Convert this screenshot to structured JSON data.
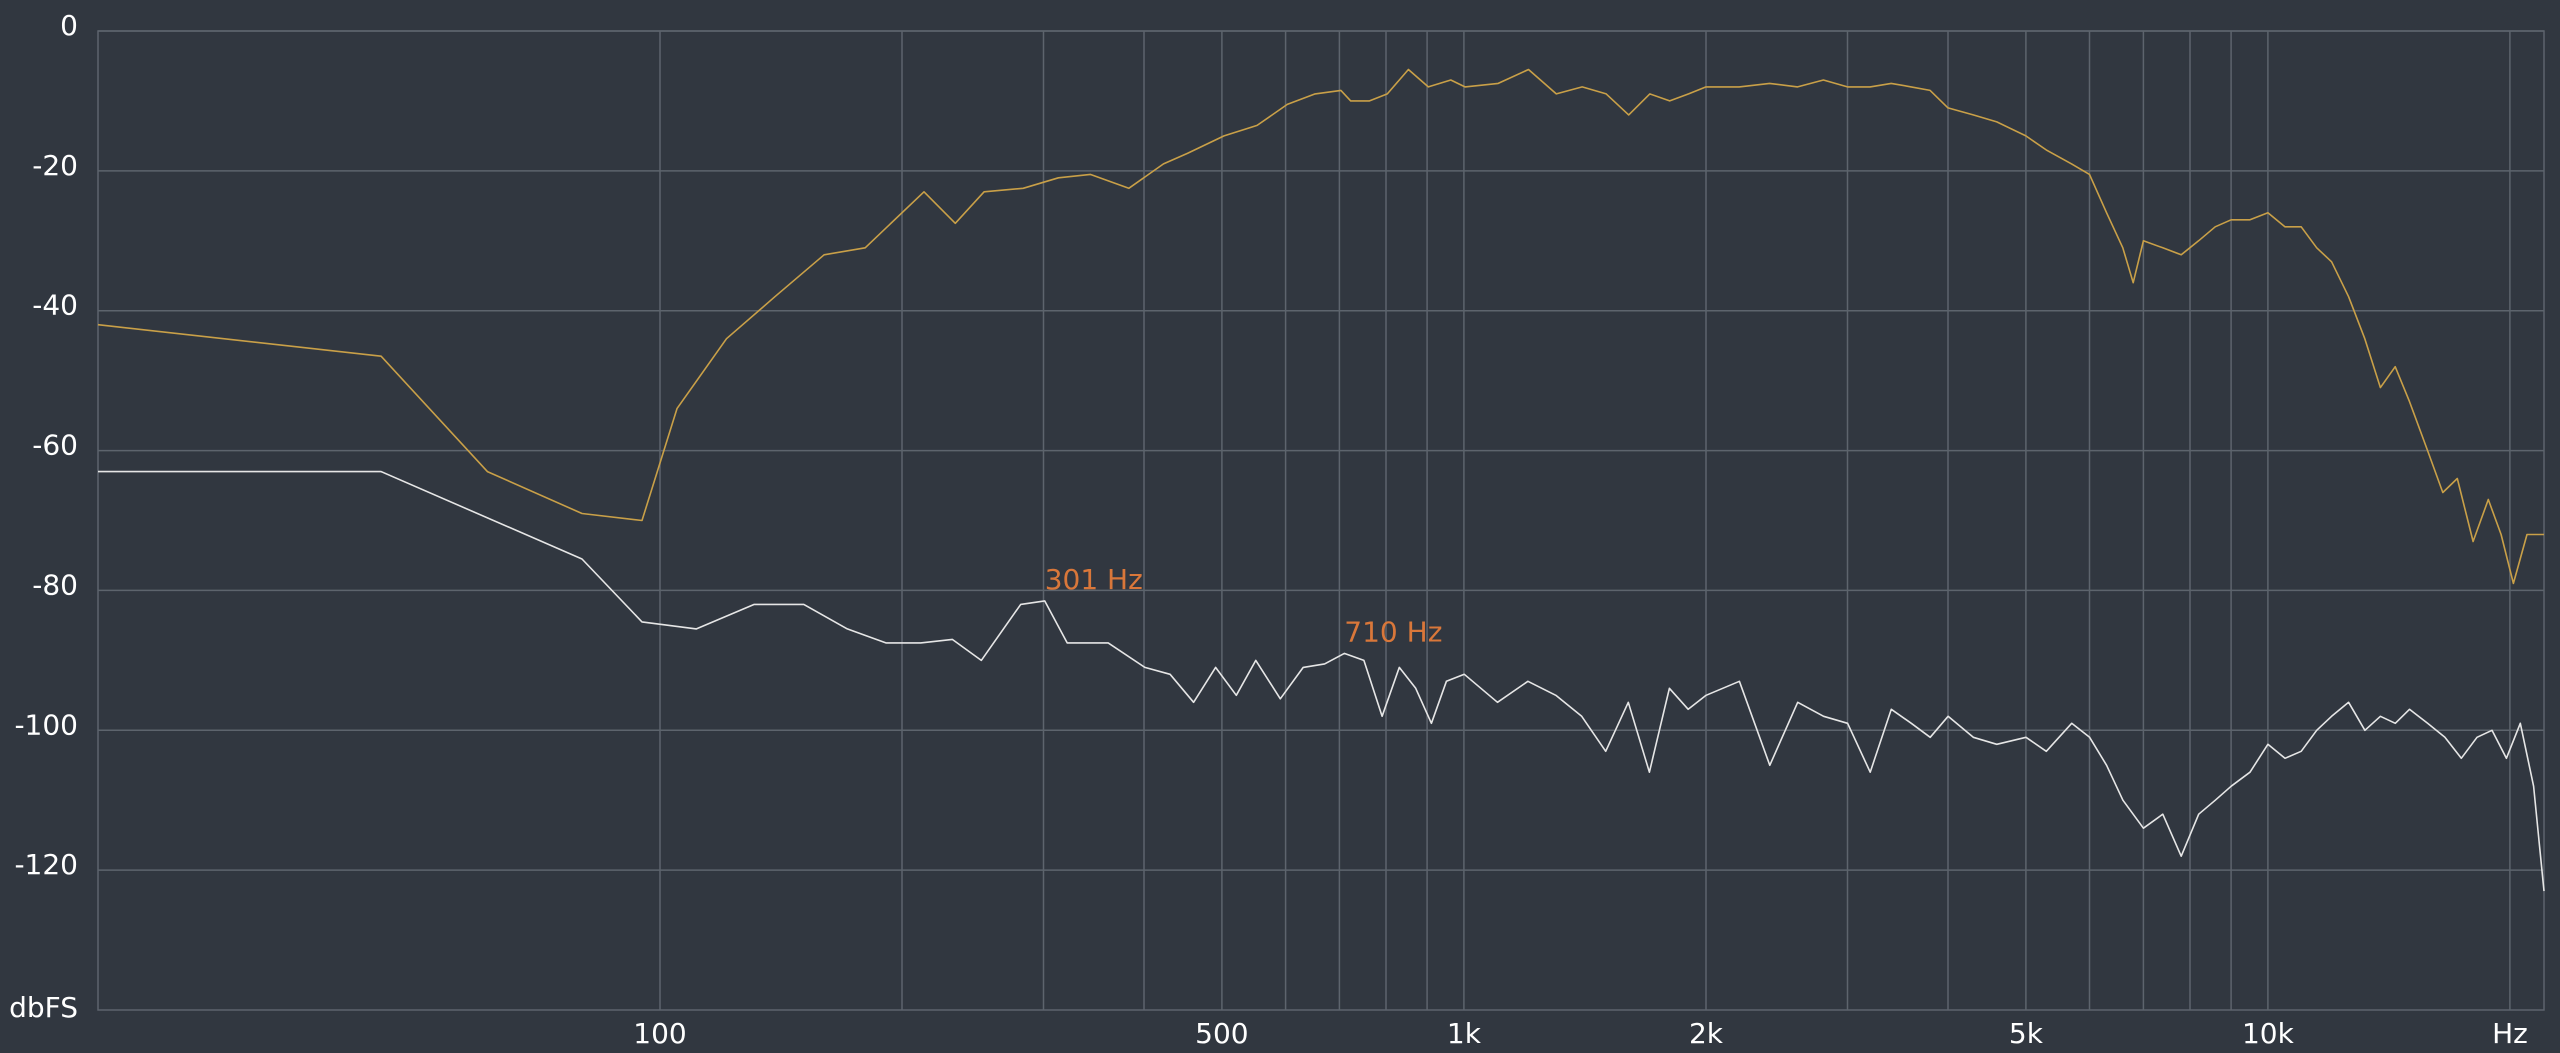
{
  "chart_data": {
    "type": "line",
    "title": "",
    "x_scale": "log",
    "xlim": [
      20,
      22050
    ],
    "ylim": [
      -140,
      0
    ],
    "grid": true,
    "y_unit_label": "dbFS",
    "x_unit_label": "Hz",
    "y_ticks": [
      {
        "value": 0,
        "label": "0"
      },
      {
        "value": -20,
        "label": "-20"
      },
      {
        "value": -40,
        "label": "-40"
      },
      {
        "value": -60,
        "label": "-60"
      },
      {
        "value": -80,
        "label": "-80"
      },
      {
        "value": -100,
        "label": "-100"
      },
      {
        "value": -120,
        "label": "-120"
      }
    ],
    "x_ticks": [
      {
        "value": 100,
        "label": "100"
      },
      {
        "value": 500,
        "label": "500"
      },
      {
        "value": 1000,
        "label": "1k"
      },
      {
        "value": 2000,
        "label": "2k"
      },
      {
        "value": 5000,
        "label": "5k"
      },
      {
        "value": 10000,
        "label": "10k"
      }
    ],
    "x_gridlines": [
      100,
      200,
      300,
      400,
      500,
      600,
      700,
      800,
      900,
      1000,
      2000,
      3000,
      4000,
      5000,
      6000,
      7000,
      8000,
      9000,
      10000,
      20000
    ],
    "series": [
      {
        "color": "#c9a048",
        "points": [
          [
            20,
            -42
          ],
          [
            45,
            -46.5
          ],
          [
            61,
            -63
          ],
          [
            80,
            -69
          ],
          [
            95,
            -70
          ],
          [
            105,
            -54
          ],
          [
            121,
            -44
          ],
          [
            139,
            -38
          ],
          [
            160,
            -32
          ],
          [
            180,
            -31
          ],
          [
            213,
            -23
          ],
          [
            233,
            -27.5
          ],
          [
            253,
            -23
          ],
          [
            283,
            -22.5
          ],
          [
            313,
            -21
          ],
          [
            343,
            -20.5
          ],
          [
            383,
            -22.5
          ],
          [
            423,
            -19
          ],
          [
            453,
            -17.5
          ],
          [
            503,
            -15
          ],
          [
            553,
            -13.5
          ],
          [
            603,
            -10.5
          ],
          [
            653,
            -9
          ],
          [
            703,
            -8.5
          ],
          [
            723,
            -10
          ],
          [
            763,
            -10
          ],
          [
            803,
            -9
          ],
          [
            853,
            -5.5
          ],
          [
            903,
            -8
          ],
          [
            963,
            -7
          ],
          [
            1003,
            -8
          ],
          [
            1103,
            -7.5
          ],
          [
            1203,
            -5.5
          ],
          [
            1303,
            -9
          ],
          [
            1403,
            -8
          ],
          [
            1503,
            -9
          ],
          [
            1603,
            -12
          ],
          [
            1703,
            -9
          ],
          [
            1803,
            -10
          ],
          [
            1903,
            -9
          ],
          [
            2000,
            -8
          ],
          [
            2200,
            -8
          ],
          [
            2400,
            -7.5
          ],
          [
            2600,
            -8
          ],
          [
            2800,
            -7
          ],
          [
            3000,
            -8
          ],
          [
            3200,
            -8
          ],
          [
            3400,
            -7.5
          ],
          [
            3600,
            -8
          ],
          [
            3800,
            -8.5
          ],
          [
            4000,
            -11
          ],
          [
            4300,
            -12
          ],
          [
            4600,
            -13
          ],
          [
            5000,
            -15
          ],
          [
            5300,
            -17
          ],
          [
            5700,
            -19
          ],
          [
            6000,
            -20.5
          ],
          [
            6300,
            -26
          ],
          [
            6600,
            -31
          ],
          [
            6800,
            -36
          ],
          [
            7000,
            -30
          ],
          [
            7400,
            -31
          ],
          [
            7800,
            -32
          ],
          [
            8200,
            -30
          ],
          [
            8600,
            -28
          ],
          [
            9000,
            -27
          ],
          [
            9500,
            -27
          ],
          [
            10000,
            -26
          ],
          [
            10500,
            -28
          ],
          [
            11000,
            -28
          ],
          [
            11500,
            -31
          ],
          [
            12000,
            -33
          ],
          [
            12600,
            -38
          ],
          [
            13200,
            -44
          ],
          [
            13800,
            -51
          ],
          [
            14400,
            -48
          ],
          [
            15000,
            -53
          ],
          [
            15800,
            -60
          ],
          [
            16500,
            -66
          ],
          [
            17200,
            -64
          ],
          [
            18000,
            -73
          ],
          [
            18800,
            -67
          ],
          [
            19500,
            -72
          ],
          [
            20200,
            -79
          ],
          [
            21000,
            -72
          ],
          [
            22050,
            -72
          ]
        ]
      },
      {
        "color": "#e6e6e6",
        "points": [
          [
            20,
            -63
          ],
          [
            45,
            -63
          ],
          [
            80,
            -75.5
          ],
          [
            95,
            -84.5
          ],
          [
            111,
            -85.5
          ],
          [
            131,
            -82
          ],
          [
            151,
            -82
          ],
          [
            171,
            -85.5
          ],
          [
            191,
            -87.5
          ],
          [
            211,
            -87.5
          ],
          [
            231,
            -87
          ],
          [
            251,
            -90
          ],
          [
            281,
            -82
          ],
          [
            301,
            -81.5
          ],
          [
            321,
            -87.5
          ],
          [
            361,
            -87.5
          ],
          [
            401,
            -91
          ],
          [
            431,
            -92
          ],
          [
            461,
            -96
          ],
          [
            491,
            -91
          ],
          [
            521,
            -95
          ],
          [
            551,
            -90
          ],
          [
            591,
            -95.5
          ],
          [
            631,
            -91
          ],
          [
            671,
            -90.5
          ],
          [
            710,
            -89
          ],
          [
            751,
            -90
          ],
          [
            791,
            -98
          ],
          [
            831,
            -91
          ],
          [
            871,
            -94
          ],
          [
            911,
            -99
          ],
          [
            951,
            -93
          ],
          [
            1001,
            -92
          ],
          [
            1101,
            -96
          ],
          [
            1201,
            -93
          ],
          [
            1301,
            -95
          ],
          [
            1401,
            -98
          ],
          [
            1501,
            -103
          ],
          [
            1601,
            -96
          ],
          [
            1701,
            -106
          ],
          [
            1801,
            -94
          ],
          [
            1901,
            -97
          ],
          [
            2001,
            -95
          ],
          [
            2201,
            -93
          ],
          [
            2401,
            -105
          ],
          [
            2601,
            -96
          ],
          [
            2801,
            -98
          ],
          [
            3001,
            -99
          ],
          [
            3201,
            -106
          ],
          [
            3401,
            -97
          ],
          [
            3601,
            -99
          ],
          [
            3801,
            -101
          ],
          [
            4001,
            -98
          ],
          [
            4301,
            -101
          ],
          [
            4601,
            -102
          ],
          [
            5001,
            -101
          ],
          [
            5301,
            -103
          ],
          [
            5701,
            -99
          ],
          [
            6001,
            -101
          ],
          [
            6301,
            -105
          ],
          [
            6601,
            -110
          ],
          [
            7001,
            -114
          ],
          [
            7401,
            -112
          ],
          [
            7801,
            -118
          ],
          [
            8201,
            -112
          ],
          [
            8601,
            -110
          ],
          [
            9001,
            -108
          ],
          [
            9501,
            -106
          ],
          [
            10001,
            -102
          ],
          [
            10501,
            -104
          ],
          [
            11001,
            -103
          ],
          [
            11501,
            -100
          ],
          [
            12001,
            -98
          ],
          [
            12601,
            -96
          ],
          [
            13201,
            -100
          ],
          [
            13801,
            -98
          ],
          [
            14401,
            -99
          ],
          [
            15001,
            -97
          ],
          [
            15801,
            -99
          ],
          [
            16601,
            -101
          ],
          [
            17401,
            -104
          ],
          [
            18201,
            -101
          ],
          [
            19001,
            -100
          ],
          [
            19801,
            -104
          ],
          [
            20601,
            -99
          ],
          [
            21401,
            -108
          ],
          [
            22050,
            -123
          ]
        ]
      }
    ],
    "annotations": [
      {
        "x": 301,
        "y": -81.5,
        "text": "301 Hz"
      },
      {
        "x": 710,
        "y": -89,
        "text": "710 Hz"
      }
    ]
  }
}
